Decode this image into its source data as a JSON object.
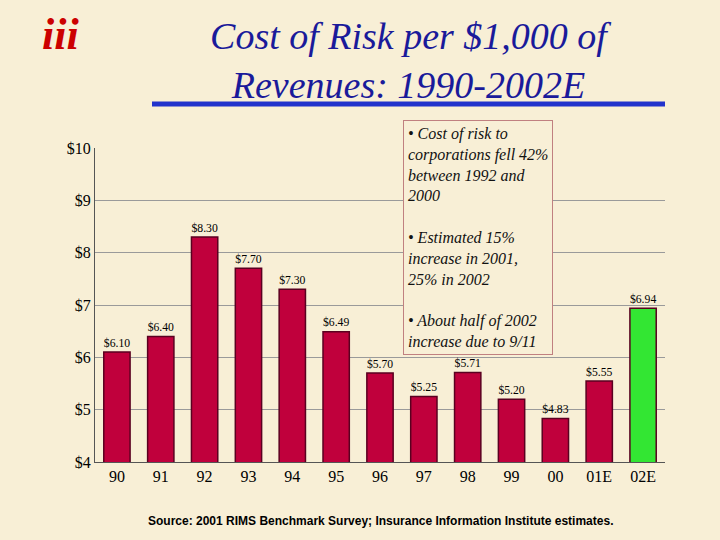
{
  "chart_data": {
    "type": "bar",
    "title": "Cost of Risk per $1,000 of\nRevenues: 1990-2002E",
    "logo": "iii",
    "categories": [
      "90",
      "91",
      "92",
      "93",
      "94",
      "95",
      "96",
      "97",
      "98",
      "99",
      "00",
      "01E",
      "02E"
    ],
    "values": [
      6.1,
      6.4,
      8.3,
      7.7,
      7.3,
      6.49,
      5.7,
      5.25,
      5.71,
      5.2,
      4.83,
      5.55,
      6.94
    ],
    "value_labels": [
      "$6.10",
      "$6.40",
      "$8.30",
      "$7.70",
      "$7.30",
      "$6.49",
      "$5.70",
      "$5.25",
      "$5.71",
      "$5.20",
      "$4.83",
      "$5.55",
      "$6.94"
    ],
    "colors": [
      "#c0003c",
      "#c0003c",
      "#c0003c",
      "#c0003c",
      "#c0003c",
      "#c0003c",
      "#c0003c",
      "#c0003c",
      "#c0003c",
      "#c0003c",
      "#c0003c",
      "#c0003c",
      "#33e633"
    ],
    "data_labels": true,
    "ylim": [
      4,
      10
    ],
    "yticks": [
      {
        "value": 4,
        "label": "$4"
      },
      {
        "value": 5,
        "label": "$5"
      },
      {
        "value": 6,
        "label": "$6"
      },
      {
        "value": 7,
        "label": "$7"
      },
      {
        "value": 8,
        "label": "$8"
      },
      {
        "value": 9,
        "label": "$9"
      },
      {
        "value": 10,
        "label": "$10"
      }
    ],
    "grid": true,
    "annotations": [
      "• Cost of risk to\ncorporations fell 42%\nbetween 1992 and\n2000",
      "• Estimated 15%\nincrease in 2001,\n25% in 2002",
      "• About half of 2002\nincrease due to 9/11"
    ],
    "source": "Source: 2001 RIMS Benchmark Survey; Insurance Information Institute estimates."
  }
}
